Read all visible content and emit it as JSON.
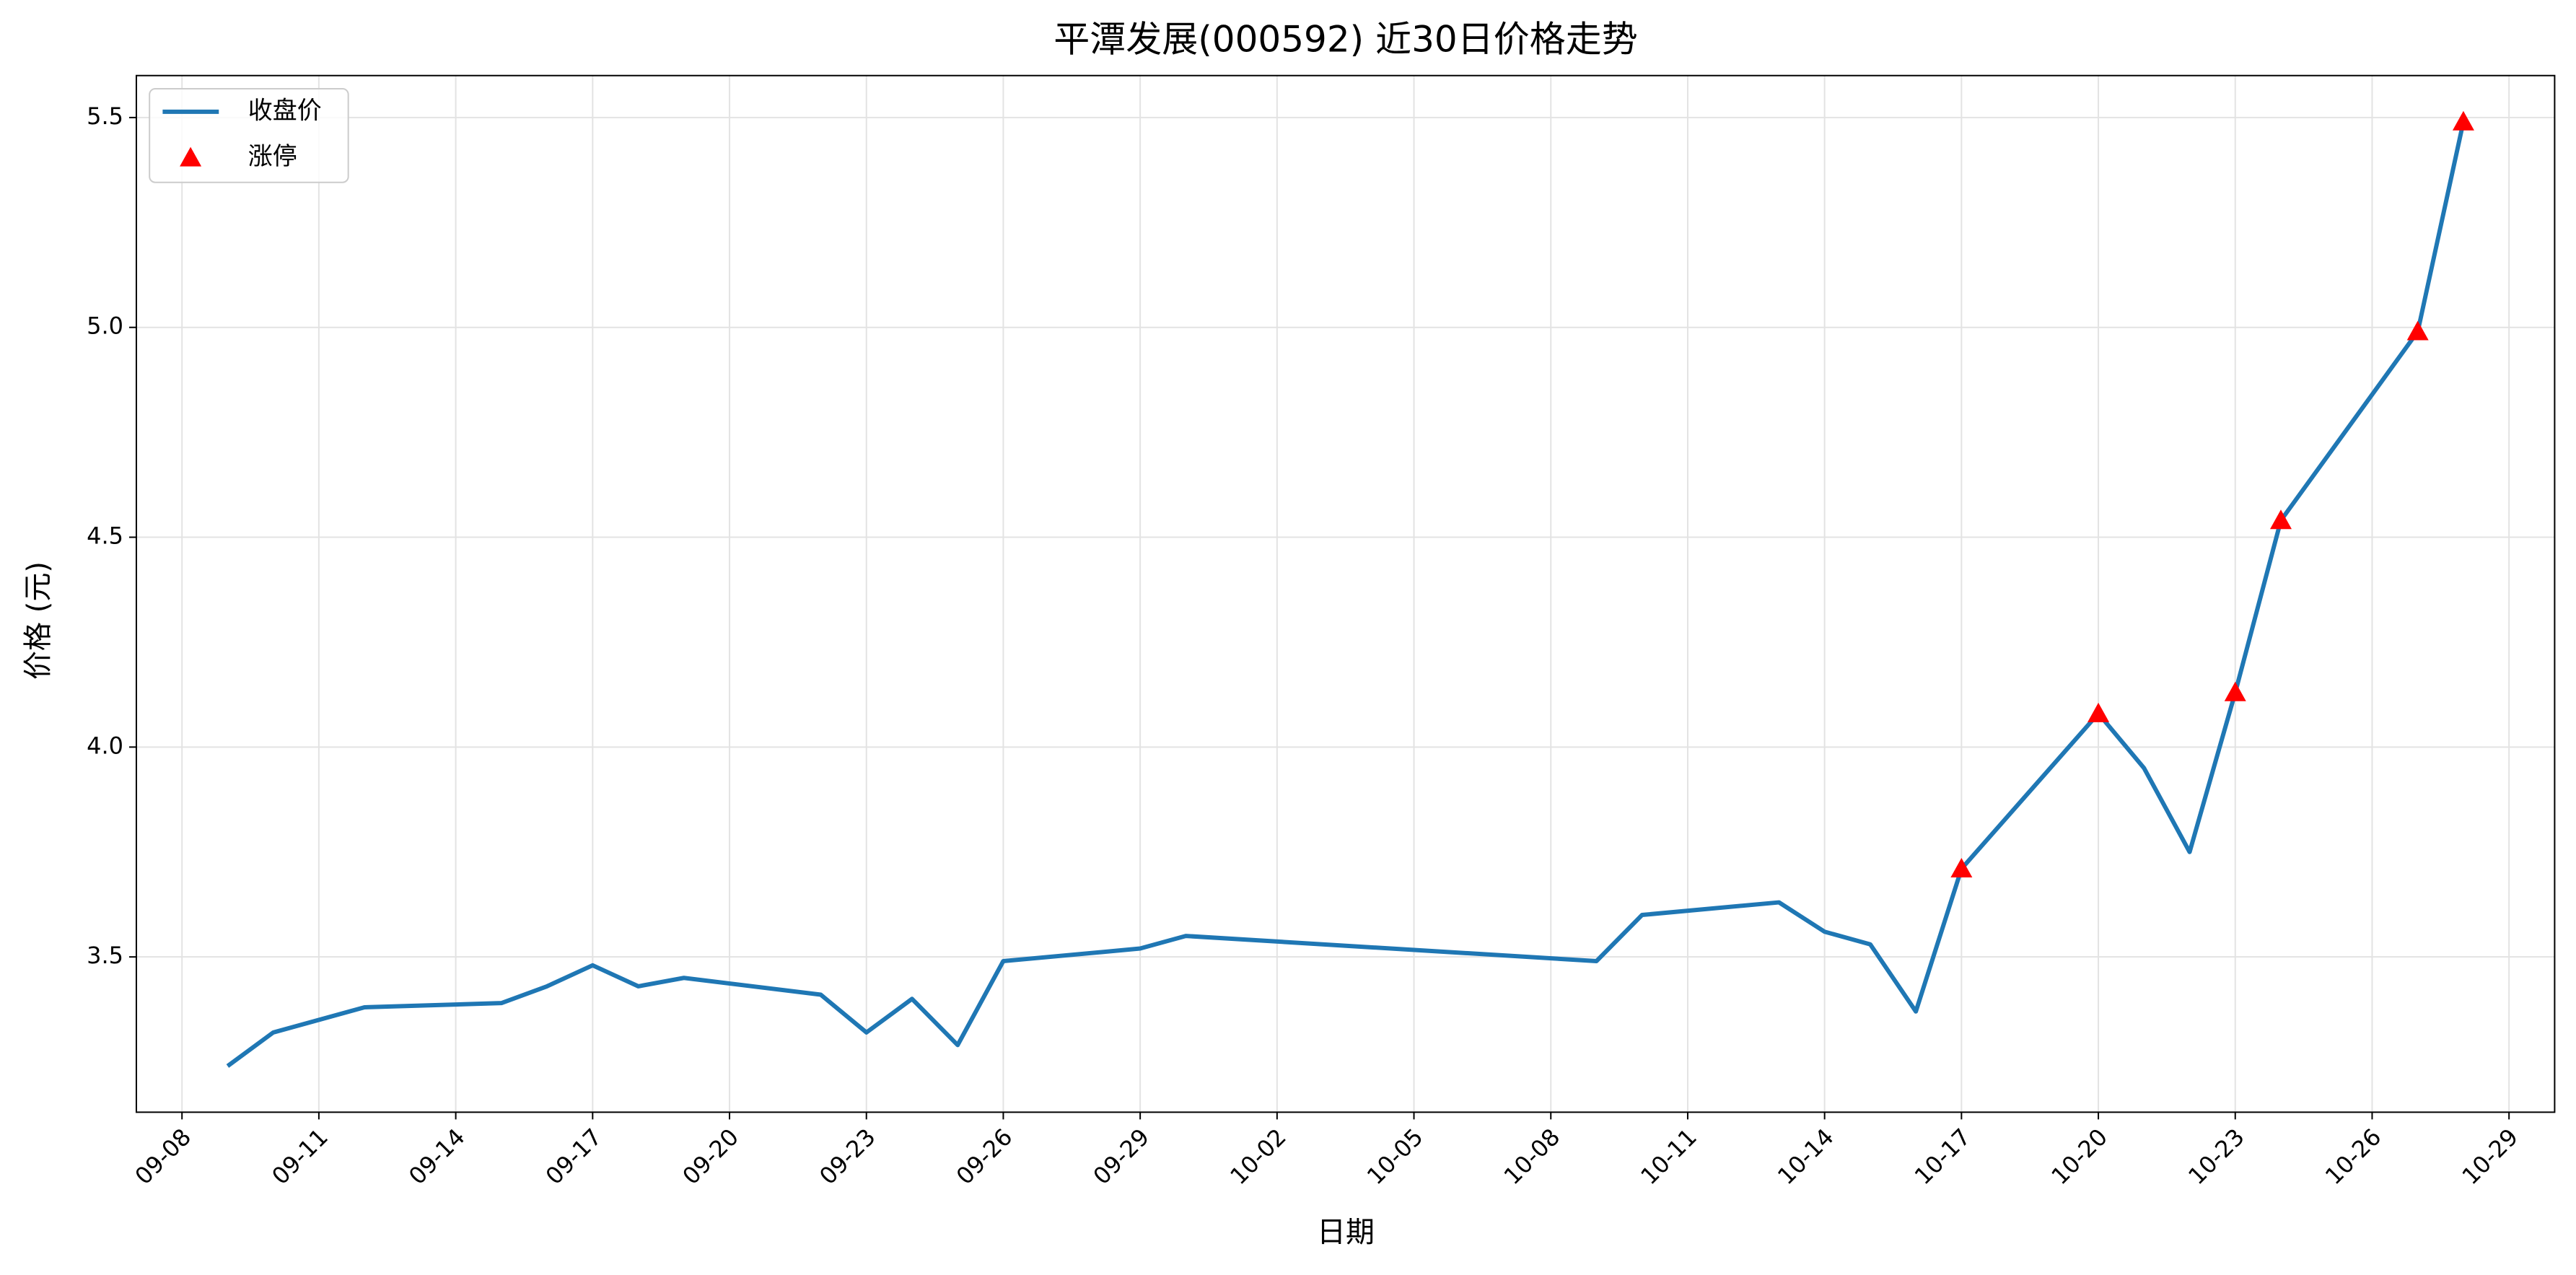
{
  "chart_data": {
    "type": "line",
    "title": "平潭发展(000592) 近30日价格走势",
    "xlabel": "日期",
    "ylabel": "价格 (元)",
    "series": [
      {
        "name": "收盘价",
        "color": "#1f77b4",
        "x": [
          "09-09",
          "09-10",
          "09-12",
          "09-15",
          "09-16",
          "09-17",
          "09-18",
          "09-19",
          "09-22",
          "09-23",
          "09-24",
          "09-25",
          "09-26",
          "09-29",
          "09-30",
          "10-09",
          "10-10",
          "10-13",
          "10-14",
          "10-15",
          "10-16",
          "10-17",
          "10-20",
          "10-21",
          "10-22",
          "10-23",
          "10-24",
          "10-27",
          "10-28"
        ],
        "values": [
          3.24,
          3.32,
          3.38,
          3.39,
          3.43,
          3.48,
          3.43,
          3.45,
          3.41,
          3.32,
          3.4,
          3.29,
          3.49,
          3.52,
          3.55,
          3.49,
          3.6,
          3.63,
          3.56,
          3.53,
          3.37,
          3.71,
          4.08,
          3.95,
          3.75,
          4.13,
          4.54,
          4.99,
          5.49
        ]
      },
      {
        "name": "涨停",
        "color": "red",
        "type": "scatter",
        "marker": "triangle",
        "x": [
          "10-17",
          "10-20",
          "10-23",
          "10-24",
          "10-27",
          "10-28"
        ],
        "values": [
          3.71,
          4.08,
          4.13,
          4.54,
          4.99,
          5.49
        ]
      }
    ],
    "xlim": [
      "09-07",
      "10-30"
    ],
    "xticks": [
      "09-08",
      "09-11",
      "09-14",
      "09-17",
      "09-20",
      "09-23",
      "09-26",
      "09-29",
      "10-02",
      "10-05",
      "10-08",
      "10-11",
      "10-14",
      "10-17",
      "10-20",
      "10-23",
      "10-26",
      "10-29"
    ],
    "ylim": [
      3.13,
      5.6
    ],
    "yticks": [
      3.5,
      {
        "value": 4.0,
        "label": "4.0"
      },
      4.5,
      {
        "value": 5.0,
        "label": "5.0"
      },
      5.5
    ],
    "grid": true,
    "legend": "upper left"
  }
}
